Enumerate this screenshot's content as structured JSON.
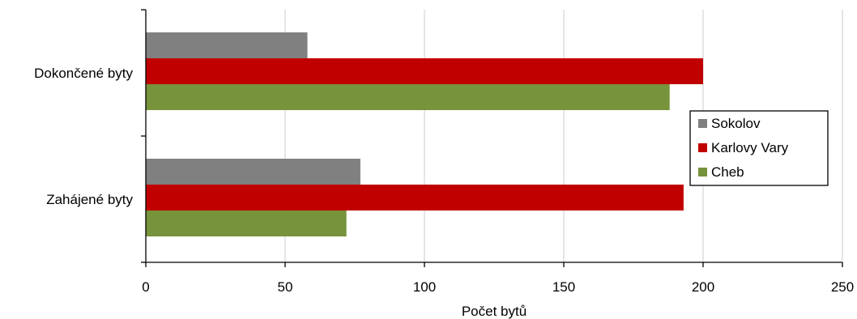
{
  "chart_data": {
    "type": "bar",
    "orientation": "horizontal",
    "categories": [
      "Dokončené byty",
      "Zahájené byty"
    ],
    "series": [
      {
        "name": "Sokolov",
        "values": [
          58,
          77
        ],
        "color": "#808080"
      },
      {
        "name": "Karlovy Vary",
        "values": [
          200,
          193
        ],
        "color": "#c00000"
      },
      {
        "name": "Cheb",
        "values": [
          188,
          72
        ],
        "color": "#77933c"
      }
    ],
    "xlabel": "Počet bytů",
    "ylabel": "",
    "xlim": [
      0,
      250
    ],
    "xticks": [
      0,
      50,
      100,
      150,
      200,
      250
    ],
    "grid": true,
    "legend_position": "right"
  }
}
